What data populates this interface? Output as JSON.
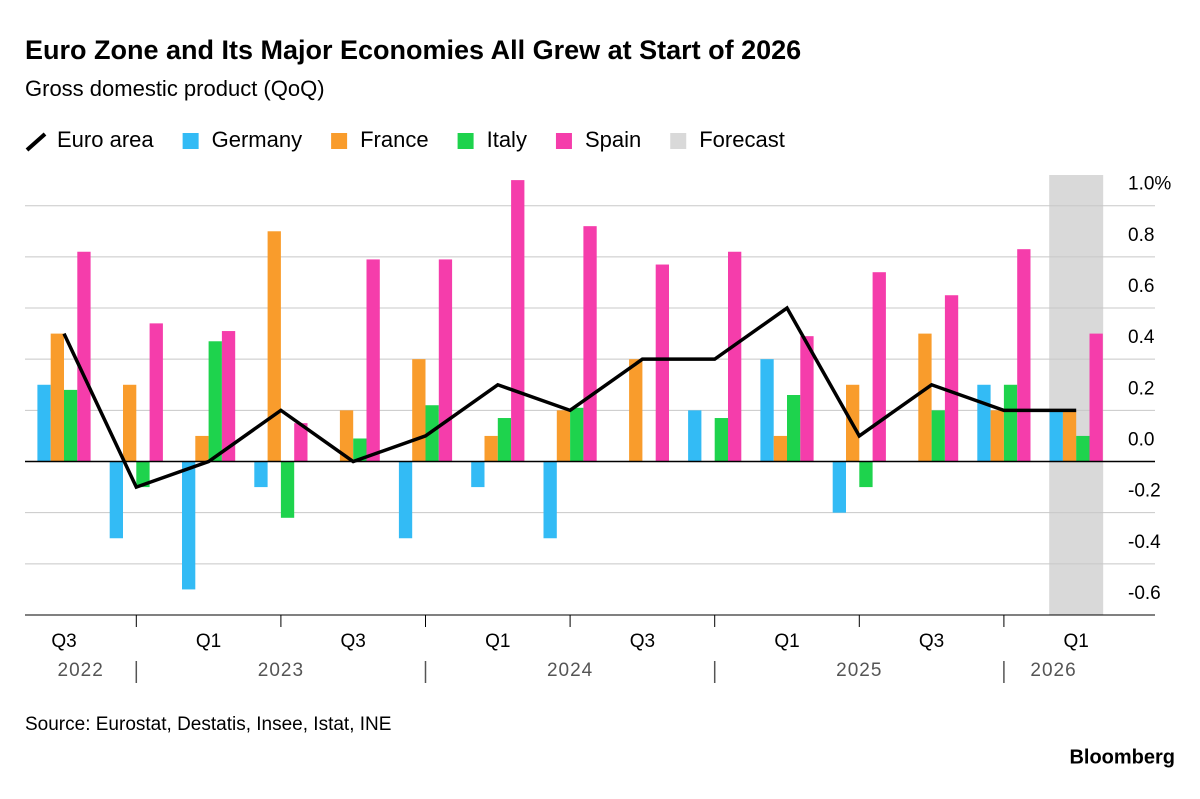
{
  "chart_data": {
    "type": "bar",
    "title": "Euro Zone and Its Major Economies All Grew at Start of 2026",
    "subtitle": "Gross domestic product (QoQ)",
    "source": "Source: Eurostat, Destatis, Insee, Istat, INE",
    "brand": "Bloomberg",
    "categories": [
      "Q3",
      null,
      "Q1",
      null,
      "Q3",
      null,
      "Q1",
      null,
      "Q3",
      null,
      "Q1",
      null,
      "Q3",
      null,
      "Q1"
    ],
    "years": [
      "2022",
      null,
      "2023",
      null,
      null,
      null,
      "2024",
      null,
      null,
      null,
      "2025",
      null,
      null,
      null,
      "2026"
    ],
    "series": [
      {
        "name": "Euro area",
        "color": "#000000",
        "type": "line",
        "values": [
          0.5,
          -0.1,
          0.0,
          0.2,
          0.0,
          0.1,
          0.3,
          0.2,
          0.4,
          0.4,
          0.6,
          0.1,
          0.3,
          0.2,
          0.2
        ]
      },
      {
        "name": "Germany",
        "color": "#33bbf5",
        "values": [
          0.3,
          -0.3,
          -0.5,
          -0.1,
          0.0,
          -0.3,
          -0.1,
          -0.3,
          0.0,
          0.2,
          0.4,
          -0.2,
          0.0,
          0.3,
          0.2
        ]
      },
      {
        "name": "France",
        "color": "#f99c2c",
        "values": [
          0.5,
          0.3,
          0.1,
          0.9,
          0.2,
          0.4,
          0.1,
          0.2,
          0.4,
          0.0,
          0.1,
          0.3,
          0.5,
          0.2,
          0.2
        ]
      },
      {
        "name": "Italy",
        "color": "#1ed34d",
        "values": [
          0.28,
          -0.1,
          0.47,
          -0.22,
          0.09,
          0.22,
          0.17,
          0.21,
          0.0,
          0.17,
          0.26,
          -0.1,
          0.2,
          0.3,
          0.1
        ]
      },
      {
        "name": "Spain",
        "color": "#f53dab",
        "values": [
          0.82,
          0.54,
          0.51,
          0.15,
          0.79,
          0.79,
          1.1,
          0.92,
          0.77,
          0.82,
          0.49,
          0.74,
          0.65,
          0.83,
          0.5
        ]
      }
    ],
    "forecast": {
      "name": "Forecast",
      "color": "#d9d9d9",
      "categories": [
        false,
        false,
        false,
        false,
        false,
        false,
        false,
        false,
        false,
        false,
        false,
        false,
        false,
        false,
        true
      ]
    },
    "ylim": [
      -0.6,
      1.12
    ],
    "yticks": [
      {
        "value": -0.6,
        "label": "-0.6"
      },
      {
        "value": -0.4,
        "label": "-0.4"
      },
      -0.2,
      {
        "value": 0,
        "label": "0.0"
      },
      0.2,
      0.4,
      0.6,
      0.8,
      {
        "value": 1,
        "label": "1.0%"
      }
    ],
    "grid": true
  }
}
